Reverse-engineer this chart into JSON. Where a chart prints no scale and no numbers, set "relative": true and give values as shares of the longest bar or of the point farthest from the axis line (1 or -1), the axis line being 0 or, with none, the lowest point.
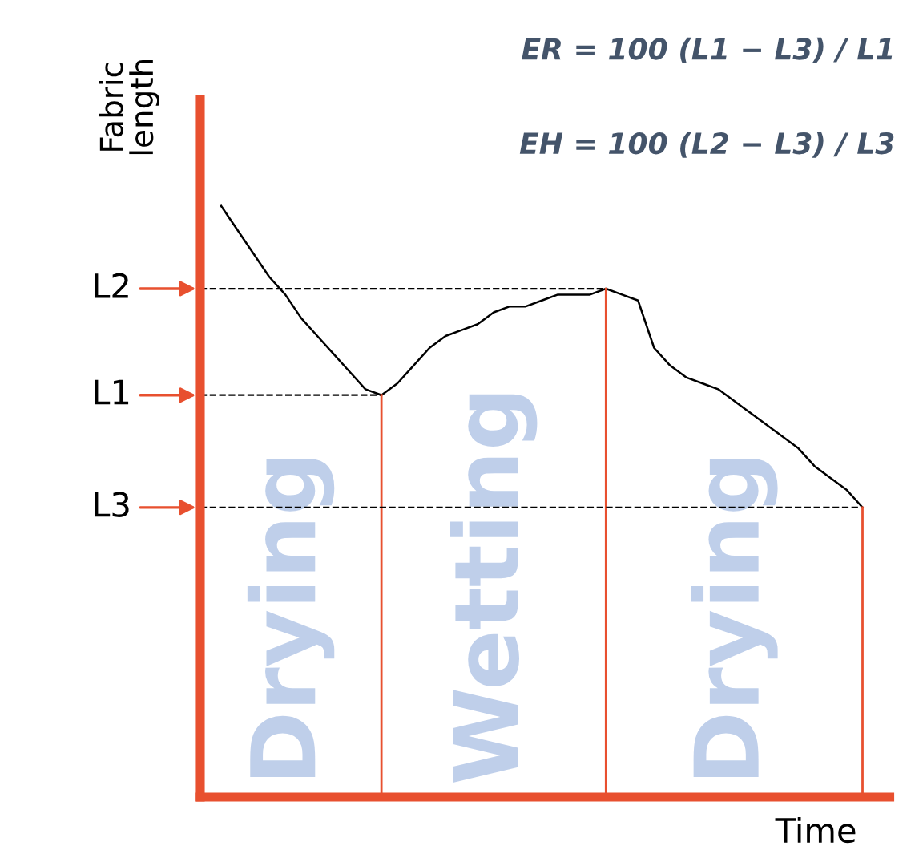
{
  "chart_data": {
    "type": "line",
    "relative": true,
    "xlabel": "Time",
    "ylabel": "Fabric\nlength",
    "categories": [
      null,
      null,
      null,
      null,
      null,
      null,
      null,
      null,
      null,
      null,
      null,
      null,
      null,
      null,
      null,
      null,
      null,
      null,
      null,
      null,
      null,
      null,
      null,
      null,
      null,
      null,
      null,
      null,
      null,
      null,
      null,
      null,
      null,
      null,
      null,
      null,
      null,
      null,
      null,
      null,
      null
    ],
    "series": [
      {
        "color": "#000000",
        "values": [
          1.0,
          0.96,
          0.92,
          0.88,
          0.85,
          0.81,
          0.78,
          0.75,
          0.72,
          0.69,
          0.68,
          0.7,
          0.73,
          0.76,
          0.78,
          0.79,
          0.8,
          0.82,
          0.83,
          0.83,
          0.84,
          0.85,
          0.85,
          0.85,
          0.86,
          0.85,
          0.84,
          0.76,
          0.73,
          0.71,
          0.7,
          0.69,
          0.67,
          0.65,
          0.63,
          0.61,
          0.59,
          0.56,
          0.54,
          0.52,
          0.49
        ]
      }
    ],
    "ref_lines": [
      {
        "axis": "y",
        "value": 0.86,
        "label": "L2",
        "color": "#000000",
        "line_style": "dashed"
      },
      {
        "axis": "y",
        "value": 0.68,
        "label": "L1",
        "color": "#000000",
        "line_style": "dashed"
      },
      {
        "axis": "y",
        "value": 0.49,
        "label": "L3",
        "color": "#000000",
        "line_style": "dashed"
      }
    ],
    "annotations": [
      "ER = 100 (L1 − L3) / L1",
      "EH = 100 (L2 − L3) / L3",
      "Drying",
      "Wetting",
      "Drying"
    ],
    "legend": false,
    "marker": "none",
    "line_style": "solid"
  }
}
